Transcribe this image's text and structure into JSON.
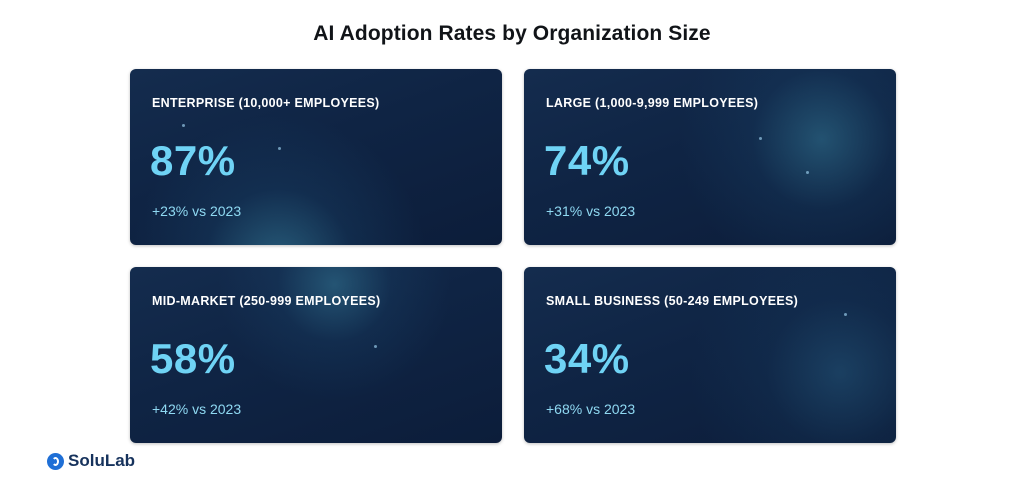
{
  "title": "AI Adoption Rates by Organization Size",
  "cards": [
    {
      "label": "ENTERPRISE (10,000+ EMPLOYEES)",
      "value": "87%",
      "change": "+23% vs 2023"
    },
    {
      "label": "LARGE (1,000-9,999 EMPLOYEES)",
      "value": "74%",
      "change": "+31% vs 2023"
    },
    {
      "label": "MID-MARKET (250-999 EMPLOYEES)",
      "value": "58%",
      "change": "+42% vs 2023"
    },
    {
      "label": "SMALL BUSINESS (50-249 EMPLOYEES)",
      "value": "34%",
      "change": "+68% vs 2023"
    }
  ],
  "brand": {
    "name": "SoluLab",
    "icon": "solulab-logo-icon"
  },
  "colors": {
    "card_background": "#0f2444",
    "value_color": "#6fd3f5",
    "label_color": "#ffffff",
    "change_color": "#8fd9f2",
    "brand_color": "#1f6fd6"
  }
}
